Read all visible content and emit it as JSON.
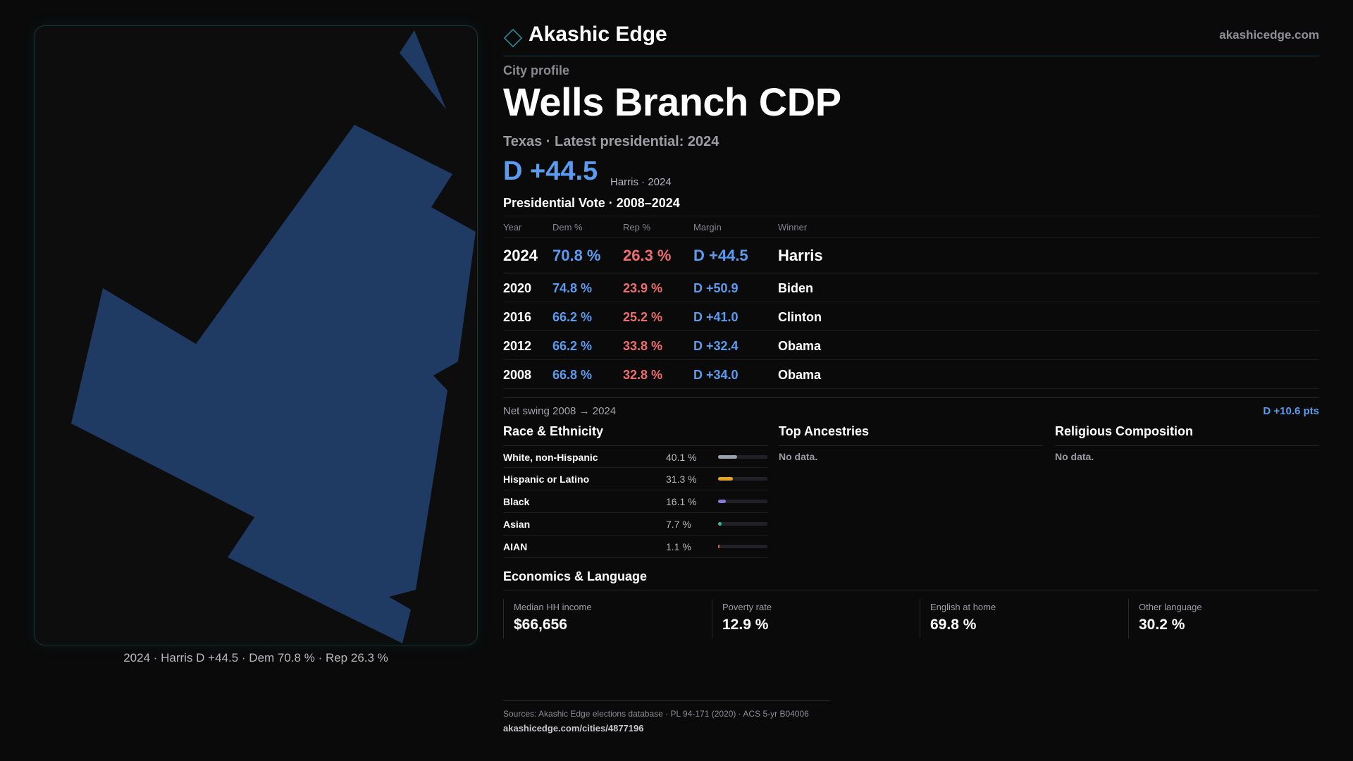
{
  "brand": {
    "name": "Akashic Edge",
    "url": "akashicedge.com"
  },
  "map": {
    "fill_color": "#1f3a63",
    "caption": "2024 · Harris D +44.5 · Dem 70.8 % · Rep 26.3 %"
  },
  "profile": {
    "eyebrow": "City profile",
    "title": "Wells Branch CDP",
    "subtitle": "Texas · Latest presidential: 2024",
    "margin_headline": "D +44.5",
    "margin_note": "Harris · 2024"
  },
  "vote": {
    "title": "Presidential Vote · 2008–2024",
    "headers": {
      "year": "Year",
      "dem": "Dem %",
      "rep": "Rep %",
      "margin": "Margin",
      "winner": "Winner"
    },
    "rows": [
      {
        "year": "2024",
        "dem": "70.8 %",
        "rep": "26.3 %",
        "margin": "D +44.5",
        "winner": "Harris"
      },
      {
        "year": "2020",
        "dem": "74.8 %",
        "rep": "23.9 %",
        "margin": "D +50.9",
        "winner": "Biden"
      },
      {
        "year": "2016",
        "dem": "66.2 %",
        "rep": "25.2 %",
        "margin": "D +41.0",
        "winner": "Clinton"
      },
      {
        "year": "2012",
        "dem": "66.2 %",
        "rep": "33.8 %",
        "margin": "D +32.4",
        "winner": "Obama"
      },
      {
        "year": "2008",
        "dem": "66.8 %",
        "rep": "32.8 %",
        "margin": "D +34.0",
        "winner": "Obama"
      }
    ],
    "swing_label": "Net swing 2008 → 2024",
    "swing_value": "D +10.6 pts"
  },
  "race": {
    "title": "Race & Ethnicity",
    "rows": [
      {
        "name": "White, non-Hispanic",
        "pct": "40.1 %",
        "share": 0.401,
        "color": "#9aa3b2"
      },
      {
        "name": "Hispanic or Latino",
        "pct": "31.3 %",
        "share": 0.313,
        "color": "#e3a325"
      },
      {
        "name": "Black",
        "pct": "16.1 %",
        "share": 0.161,
        "color": "#8a78d6"
      },
      {
        "name": "Asian",
        "pct": "7.7 %",
        "share": 0.077,
        "color": "#2fc38d"
      },
      {
        "name": "AIAN",
        "pct": "1.1 %",
        "share": 0.011,
        "color": "#d96b3a"
      }
    ]
  },
  "ancestries": {
    "title": "Top Ancestries",
    "empty": "No data."
  },
  "religion": {
    "title": "Religious Composition",
    "empty": "No data."
  },
  "economics": {
    "title": "Economics & Language",
    "cells": [
      {
        "label": "Median HH income",
        "value": "$66,656"
      },
      {
        "label": "Poverty rate",
        "value": "12.9 %"
      },
      {
        "label": "English at home",
        "value": "69.8 %"
      },
      {
        "label": "Other language",
        "value": "30.2 %"
      }
    ]
  },
  "footer": {
    "sources": "Sources: Akashic Edge elections database · PL 94-171 (2020) · ACS 5-yr B04006",
    "url": "akashicedge.com/cities/4877196"
  }
}
